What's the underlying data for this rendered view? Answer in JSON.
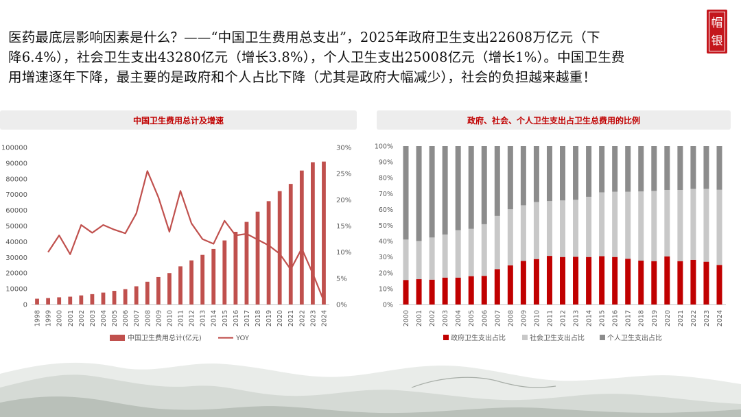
{
  "headline": {
    "line1": "医药最底层影响因素是什么？——“中国卫生费用总支出”，2025年政府卫生支出22608万亿元（下",
    "line2": "降6.4%），社会卫生支出43280亿元（增长3.8%），个人卫生支出25008亿元（增长1%）。中国卫生费",
    "line3": "用增速逐年下降，最主要的是政府和个人占比下降（尤其是政府大幅减少），社会的负担越来越重！"
  },
  "seal": {
    "char1": "帽",
    "char2": "银"
  },
  "colors": {
    "red": "#c00000",
    "line": "#c0504d",
    "bar_left": "#c0504d",
    "social": "#c8c8c8",
    "personal": "#8c8c8c"
  },
  "chart_data": [
    {
      "type": "bar",
      "title": "中国卫生费用总计及增速",
      "categories": [
        "1998",
        "1999",
        "2000",
        "2001",
        "2002",
        "2003",
        "2004",
        "2005",
        "2006",
        "2007",
        "2008",
        "2009",
        "2010",
        "2011",
        "2012",
        "2013",
        "2014",
        "2015",
        "2016",
        "2017",
        "2018",
        "2019",
        "2020",
        "2021",
        "2022",
        "2023",
        "2024"
      ],
      "series": [
        {
          "name": "中国卫生费用总计(亿元)",
          "kind": "bar",
          "axis": "left",
          "values": [
            3700,
            4100,
            4600,
            5000,
            5800,
            6600,
            7600,
            8700,
            9800,
            11600,
            14500,
            17500,
            20000,
            24300,
            28100,
            31600,
            35400,
            40800,
            46300,
            52600,
            59100,
            65800,
            72200,
            76800,
            85300,
            90600,
            91000
          ]
        },
        {
          "name": "YOY",
          "kind": "line",
          "axis": "right",
          "values": [
            null,
            0.1,
            0.132,
            0.096,
            0.152,
            0.137,
            0.152,
            0.143,
            0.136,
            0.174,
            0.255,
            0.205,
            0.139,
            0.217,
            0.155,
            0.125,
            0.116,
            0.16,
            0.132,
            0.135,
            0.124,
            0.113,
            0.097,
            0.067,
            0.107,
            0.059,
            0.007
          ]
        }
      ],
      "ylim": [
        0,
        100000
      ],
      "yticks": [
        "0",
        "10000",
        "20000",
        "30000",
        "40000",
        "50000",
        "60000",
        "70000",
        "80000",
        "90000",
        "100000"
      ],
      "y2lim": [
        0,
        0.3
      ],
      "y2ticks": [
        "0%",
        "5%",
        "10%",
        "15%",
        "20%",
        "25%",
        "30%"
      ],
      "grid": false,
      "legend": "bottom"
    },
    {
      "type": "bar",
      "stacked": true,
      "title": "政府、社会、个人卫生支出占卫生总费用的比例",
      "categories": [
        "2000",
        "2001",
        "2002",
        "2003",
        "2004",
        "2005",
        "2006",
        "2007",
        "2008",
        "2009",
        "2010",
        "2011",
        "2012",
        "2013",
        "2014",
        "2015",
        "2016",
        "2017",
        "2018",
        "2019",
        "2020",
        "2021",
        "2022",
        "2023",
        "2024"
      ],
      "series": [
        {
          "name": "政府卫生支出占比",
          "values": [
            15.5,
            16.0,
            15.7,
            17.0,
            17.0,
            17.9,
            18.1,
            22.3,
            24.7,
            27.5,
            28.7,
            30.7,
            30.0,
            30.1,
            30.0,
            30.5,
            30.0,
            28.9,
            27.7,
            27.4,
            30.4,
            27.4,
            28.2,
            27.0,
            25.0
          ]
        },
        {
          "name": "社会卫生支出占比",
          "values": [
            25.5,
            24.1,
            26.6,
            27.2,
            29.9,
            29.9,
            32.6,
            33.6,
            35.4,
            35.1,
            36.0,
            34.6,
            35.7,
            36.0,
            38.0,
            40.3,
            41.2,
            42.3,
            43.7,
            44.3,
            41.9,
            44.9,
            44.8,
            46.0,
            47.4
          ]
        },
        {
          "name": "个人卫生支出占比",
          "values": [
            59.0,
            59.9,
            57.7,
            55.8,
            53.1,
            52.2,
            49.3,
            44.1,
            39.9,
            37.4,
            35.3,
            34.7,
            34.3,
            33.9,
            32.0,
            29.2,
            28.8,
            28.8,
            28.6,
            28.3,
            27.7,
            27.7,
            27.0,
            27.0,
            27.6
          ]
        }
      ],
      "ylim": [
        0,
        100
      ],
      "yticks": [
        "0%",
        "10%",
        "20%",
        "30%",
        "40%",
        "50%",
        "60%",
        "70%",
        "80%",
        "90%",
        "100%"
      ],
      "grid": false,
      "legend": "bottom"
    }
  ]
}
